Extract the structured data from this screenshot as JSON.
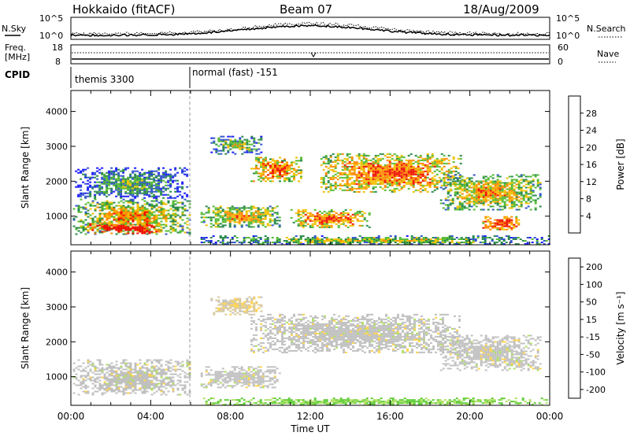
{
  "header": {
    "station": "Hokkaido (fitACF)",
    "beam": "Beam 07",
    "date": "18/Aug/2009"
  },
  "noise_panel": {
    "left_label": "N.Sky",
    "right_label": "N.Search",
    "left_ticks": [
      "10^5",
      "10^0"
    ],
    "right_ticks": [
      "10^5",
      "10^0"
    ]
  },
  "freq_panel": {
    "left_label_line1": "Freq.",
    "left_label_line2": "[MHz]",
    "left_ticks": [
      "18",
      "8"
    ],
    "right_label": "Nave",
    "right_ticks": [
      "60",
      "0"
    ]
  },
  "cpid_panel": {
    "label": "CPID",
    "modes": [
      {
        "name": "themis 3300",
        "start_hour": 0
      },
      {
        "name": "normal (fast) -151",
        "start_hour": 6
      }
    ]
  },
  "axes": {
    "ylabel": "Slant Range [km]",
    "xlabel": "Time UT",
    "y_ticks": [
      "1000",
      "2000",
      "3000",
      "4000"
    ],
    "x_ticks": [
      "00:00",
      "04:00",
      "08:00",
      "12:00",
      "16:00",
      "20:00",
      "00:00"
    ]
  },
  "chart_data": [
    {
      "type": "heatmap",
      "name": "power",
      "xlabel": "Time UT",
      "ylabel": "Slant Range [km]",
      "xlim_hours": [
        0,
        24
      ],
      "ylim_km": [
        180,
        4600
      ],
      "colorbar": {
        "label": "Power [dB]",
        "ticks": [
          "4",
          "8",
          "12",
          "16",
          "20",
          "24",
          "28"
        ],
        "colors": [
          "#1a1aff",
          "#3355cc",
          "#2a8a4a",
          "#55bb33",
          "#f0c000",
          "#ff8800",
          "#ee1100"
        ]
      },
      "echo_regions": [
        {
          "t0": 0.1,
          "t1": 6.0,
          "r0": 500,
          "r1": 1500,
          "level": 3
        },
        {
          "t0": 0.8,
          "t1": 4.5,
          "r0": 520,
          "r1": 800,
          "level": 6
        },
        {
          "t0": 0.2,
          "t1": 5.8,
          "r0": 1500,
          "r1": 2400,
          "level": 1
        },
        {
          "t0": 6.5,
          "t1": 10.5,
          "r0": 700,
          "r1": 1300,
          "level": 3
        },
        {
          "t0": 7.0,
          "t1": 9.5,
          "r0": 2800,
          "r1": 3300,
          "level": 2
        },
        {
          "t0": 9.0,
          "t1": 11.5,
          "r0": 2000,
          "r1": 2700,
          "level": 4
        },
        {
          "t0": 11.0,
          "t1": 15.0,
          "r0": 700,
          "r1": 1200,
          "level": 4
        },
        {
          "t0": 12.5,
          "t1": 19.5,
          "r0": 1700,
          "r1": 2800,
          "level": 4
        },
        {
          "t0": 18.5,
          "t1": 23.5,
          "r0": 1200,
          "r1": 2200,
          "level": 3
        },
        {
          "t0": 20.5,
          "t1": 22.5,
          "r0": 600,
          "r1": 1000,
          "level": 5
        },
        {
          "t0": 6.5,
          "t1": 24.0,
          "r0": 200,
          "r1": 450,
          "level": 2
        }
      ]
    },
    {
      "type": "heatmap",
      "name": "velocity",
      "xlabel": "Time UT",
      "ylabel": "Slant Range [km]",
      "xlim_hours": [
        0,
        24
      ],
      "ylim_km": [
        180,
        4600
      ],
      "colorbar": {
        "label": "Velocity [m s⁻¹]",
        "ticks": [
          "200",
          "100",
          "50",
          "15",
          "-15",
          "-50",
          "-100",
          "-200"
        ],
        "colors": [
          "#1a1aff",
          "#1f8a4a",
          "#5ccc33",
          "#b0e060",
          "#c0c0c0",
          "#ffd24a",
          "#ff8800",
          "#ee1100"
        ]
      },
      "echo_regions": [
        {
          "t0": 0.1,
          "t1": 6.0,
          "r0": 500,
          "r1": 1500,
          "class": "ground"
        },
        {
          "t0": 6.5,
          "t1": 10.5,
          "r0": 700,
          "r1": 1300,
          "class": "ground"
        },
        {
          "t0": 9.0,
          "t1": 19.5,
          "r0": 1700,
          "r1": 2800,
          "class": "ground"
        },
        {
          "t0": 18.5,
          "t1": 23.5,
          "r0": 1200,
          "r1": 2200,
          "class": "ground"
        },
        {
          "t0": 7.0,
          "t1": 9.5,
          "r0": 2800,
          "r1": 3300,
          "class": "negative"
        },
        {
          "t0": 6.5,
          "t1": 24.0,
          "r0": 200,
          "r1": 400,
          "class": "positive"
        }
      ]
    }
  ]
}
